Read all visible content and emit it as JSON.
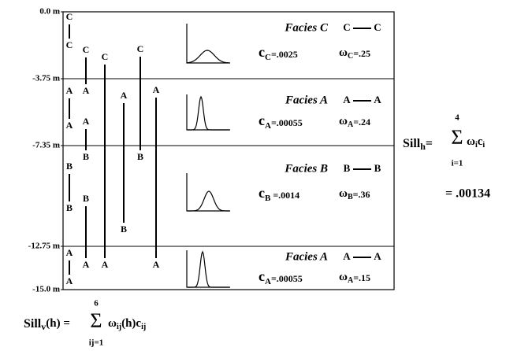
{
  "depth_labels": [
    "0.0 m",
    "-3.75 m",
    "-7.35 m",
    "-12.75 m",
    "-15.0 m"
  ],
  "columns": [
    [
      [
        "C",
        "C"
      ],
      [
        "A",
        "A"
      ],
      [
        "B",
        "B"
      ],
      [
        "A",
        "A"
      ]
    ],
    [
      [
        "C",
        "A"
      ],
      [
        "A",
        "B"
      ],
      [
        "B",
        "A"
      ]
    ],
    [
      [
        "C",
        "A"
      ]
    ],
    [
      [
        "A",
        "B"
      ]
    ],
    [
      [
        "C",
        "B"
      ]
    ],
    [
      [
        "A",
        "A"
      ]
    ]
  ],
  "facies": [
    {
      "name": "Facies C",
      "pair": [
        "C",
        "C"
      ],
      "c": {
        "symbol": "c",
        "sub": "C",
        "value": "=.0025"
      },
      "w": {
        "symbol": "ω",
        "sub": "C",
        "value": "=.25"
      }
    },
    {
      "name": "Facies A",
      "pair": [
        "A",
        "A"
      ],
      "c": {
        "symbol": "c",
        "sub": "A",
        "value": "=.00055"
      },
      "w": {
        "symbol": "ω",
        "sub": "A",
        "value": "=.24"
      }
    },
    {
      "name": "Facies B",
      "pair": [
        "B",
        "B"
      ],
      "c": {
        "symbol": "c",
        "sub": "B",
        "value": " =.0014"
      },
      "w": {
        "symbol": "ω",
        "sub": "B",
        "value": "=.36"
      }
    },
    {
      "name": "Facies A",
      "pair": [
        "A",
        "A"
      ],
      "c": {
        "symbol": "c",
        "sub": "A",
        "value": "=.00055"
      },
      "w": {
        "symbol": "ω",
        "sub": "A",
        "value": "=.15"
      }
    }
  ],
  "sill_h": {
    "label": "Sill",
    "sub": "h",
    "eq": "=",
    "sigma": "Σ",
    "sum_top": "4",
    "sum_bottom": "i=1",
    "terms": [
      {
        "symbol": "ω",
        "sub": "i"
      },
      {
        "symbol": "c",
        "sub": "i"
      }
    ],
    "result": "= .00134"
  },
  "sill_v": {
    "label": "Sill",
    "sub": "v",
    "arg": "(h) =",
    "sigma": "Σ",
    "sum_top": "6",
    "sum_bottom": "ij=1",
    "terms": [
      {
        "symbol": "ω",
        "sub": "ij",
        "after": "(h)"
      },
      {
        "symbol": "c",
        "sub": "ij"
      }
    ]
  }
}
